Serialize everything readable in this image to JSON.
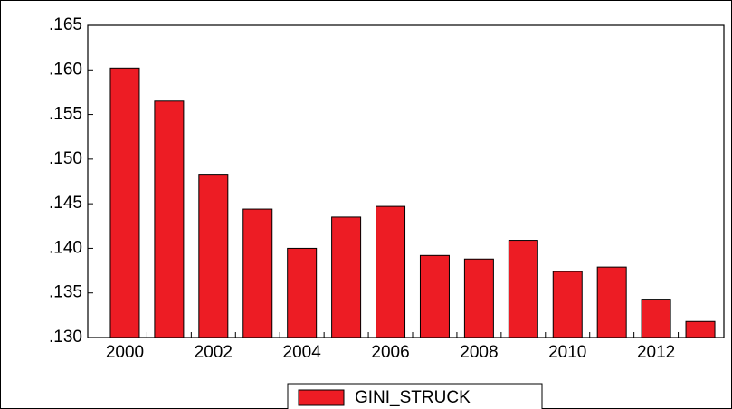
{
  "chart_data": {
    "type": "bar",
    "categories": [
      "2000",
      null,
      "2002",
      null,
      "2004",
      null,
      "2006",
      null,
      "2008",
      null,
      "2010",
      null,
      "2012",
      null
    ],
    "series": [
      {
        "name": "GINI_STRUCK",
        "color": "#ed1c24",
        "values": [
          0.1602,
          0.1565,
          0.1483,
          0.1444,
          0.14,
          0.1435,
          0.1447,
          0.1392,
          0.1388,
          0.1409,
          0.1374,
          0.1379,
          0.1343,
          0.1318
        ]
      }
    ],
    "ylim": [
      0.13,
      0.165
    ],
    "yticks": [
      {
        "value": 0.13,
        "label": ".130"
      },
      {
        "value": 0.135,
        "label": ".135"
      },
      {
        "value": 0.14,
        "label": ".140"
      },
      {
        "value": 0.145,
        "label": ".145"
      },
      {
        "value": 0.15,
        "label": ".150"
      },
      {
        "value": 0.155,
        "label": ".155"
      },
      {
        "value": 0.16,
        "label": ".160"
      },
      {
        "value": 0.165,
        "label": ".165"
      }
    ],
    "legend": "bottom"
  }
}
